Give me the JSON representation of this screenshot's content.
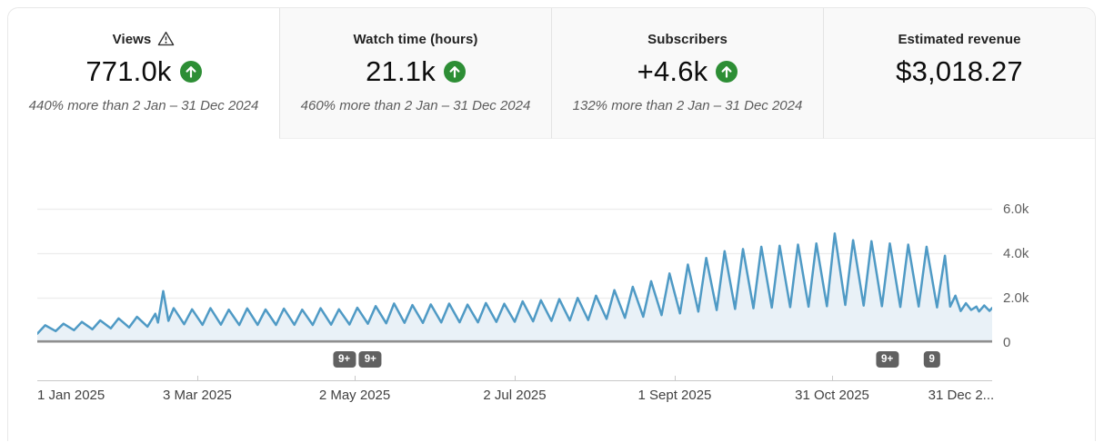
{
  "cards": [
    {
      "label": "Views",
      "value": "771.0k",
      "trend": "up",
      "has_warning_icon": true,
      "selected": true,
      "comparison": "440% more than 2 Jan – 31 Dec 2024"
    },
    {
      "label": "Watch time (hours)",
      "value": "21.1k",
      "trend": "up",
      "comparison": "460% more than 2 Jan – 31 Dec 2024"
    },
    {
      "label": "Subscribers",
      "value": "+4.6k",
      "trend": "up",
      "comparison": "132% more than 2 Jan – 31 Dec 2024"
    },
    {
      "label": "Estimated revenue",
      "value": "$3,018.27"
    }
  ],
  "colors": {
    "trend_green": "#2d8e35",
    "line_blue": "#4f9ac5",
    "area_fill": "#e9f1f7",
    "badge_gray": "#616161"
  },
  "chart_data": {
    "type": "area",
    "series_name": "Views",
    "x_range_days": [
      0,
      364
    ],
    "ylim": [
      0,
      7000
    ],
    "grid": "horizontal",
    "legend": "none",
    "y_ticks": [
      {
        "label": "6.0k",
        "value": 6000
      },
      {
        "label": "4.0k",
        "value": 4000
      },
      {
        "label": "2.0k",
        "value": 2000
      },
      {
        "label": "0",
        "value": 0
      }
    ],
    "x_axis_labels": [
      {
        "label": "1 Jan 2025",
        "day": 0,
        "align": "left",
        "tick": false
      },
      {
        "label": "3 Mar 2025",
        "day": 61,
        "align": "center",
        "tick": true
      },
      {
        "label": "2 May 2025",
        "day": 121,
        "align": "center",
        "tick": true
      },
      {
        "label": "2 Jul 2025",
        "day": 182,
        "align": "center",
        "tick": true
      },
      {
        "label": "1 Sept 2025",
        "day": 243,
        "align": "center",
        "tick": true
      },
      {
        "label": "31 Oct 2025",
        "day": 303,
        "align": "center",
        "tick": true
      },
      {
        "label": "31 Dec 2...",
        "day": 364,
        "align": "right",
        "tick": false
      }
    ],
    "markers": [
      {
        "label": "9+",
        "day": 117
      },
      {
        "label": "9+",
        "day": 127
      },
      {
        "label": "9+",
        "day": 324
      },
      {
        "label": "9",
        "day": 341
      }
    ],
    "points": [
      [
        0,
        400
      ],
      [
        3,
        780
      ],
      [
        7,
        520
      ],
      [
        10,
        850
      ],
      [
        14,
        560
      ],
      [
        17,
        930
      ],
      [
        21,
        600
      ],
      [
        24,
        1000
      ],
      [
        28,
        640
      ],
      [
        31,
        1090
      ],
      [
        35,
        680
      ],
      [
        38,
        1160
      ],
      [
        42,
        720
      ],
      [
        45,
        1300
      ],
      [
        46,
        900
      ],
      [
        48,
        2320
      ],
      [
        50,
        980
      ],
      [
        52,
        1550
      ],
      [
        56,
        830
      ],
      [
        59,
        1500
      ],
      [
        63,
        800
      ],
      [
        66,
        1550
      ],
      [
        70,
        810
      ],
      [
        73,
        1480
      ],
      [
        77,
        790
      ],
      [
        80,
        1540
      ],
      [
        84,
        800
      ],
      [
        87,
        1490
      ],
      [
        91,
        795
      ],
      [
        94,
        1530
      ],
      [
        98,
        805
      ],
      [
        101,
        1480
      ],
      [
        105,
        795
      ],
      [
        108,
        1545
      ],
      [
        112,
        810
      ],
      [
        115,
        1500
      ],
      [
        119,
        815
      ],
      [
        122,
        1570
      ],
      [
        126,
        850
      ],
      [
        129,
        1640
      ],
      [
        133,
        870
      ],
      [
        136,
        1760
      ],
      [
        140,
        890
      ],
      [
        143,
        1690
      ],
      [
        147,
        885
      ],
      [
        150,
        1720
      ],
      [
        154,
        905
      ],
      [
        157,
        1755
      ],
      [
        161,
        915
      ],
      [
        164,
        1710
      ],
      [
        168,
        910
      ],
      [
        171,
        1780
      ],
      [
        175,
        930
      ],
      [
        178,
        1745
      ],
      [
        182,
        940
      ],
      [
        185,
        1855
      ],
      [
        189,
        955
      ],
      [
        192,
        1905
      ],
      [
        196,
        975
      ],
      [
        199,
        1955
      ],
      [
        203,
        995
      ],
      [
        206,
        2010
      ],
      [
        210,
        1015
      ],
      [
        213,
        2110
      ],
      [
        217,
        1065
      ],
      [
        220,
        2360
      ],
      [
        224,
        1115
      ],
      [
        227,
        2510
      ],
      [
        231,
        1165
      ],
      [
        234,
        2760
      ],
      [
        238,
        1235
      ],
      [
        241,
        3110
      ],
      [
        245,
        1315
      ],
      [
        248,
        3510
      ],
      [
        252,
        1395
      ],
      [
        255,
        3810
      ],
      [
        259,
        1465
      ],
      [
        262,
        4110
      ],
      [
        266,
        1515
      ],
      [
        269,
        4210
      ],
      [
        273,
        1545
      ],
      [
        276,
        4310
      ],
      [
        280,
        1575
      ],
      [
        283,
        4360
      ],
      [
        287,
        1595
      ],
      [
        290,
        4410
      ],
      [
        294,
        1615
      ],
      [
        297,
        4460
      ],
      [
        301,
        1635
      ],
      [
        304,
        4910
      ],
      [
        308,
        1695
      ],
      [
        311,
        4610
      ],
      [
        315,
        1665
      ],
      [
        318,
        4560
      ],
      [
        322,
        1635
      ],
      [
        325,
        4460
      ],
      [
        329,
        1605
      ],
      [
        332,
        4410
      ],
      [
        336,
        1625
      ],
      [
        339,
        4310
      ],
      [
        343,
        1585
      ],
      [
        346,
        3910
      ],
      [
        348,
        1620
      ],
      [
        350,
        2110
      ],
      [
        352,
        1420
      ],
      [
        354,
        1770
      ],
      [
        356,
        1470
      ],
      [
        358,
        1620
      ],
      [
        359,
        1400
      ],
      [
        361,
        1670
      ],
      [
        363,
        1430
      ],
      [
        364,
        1560
      ]
    ]
  }
}
